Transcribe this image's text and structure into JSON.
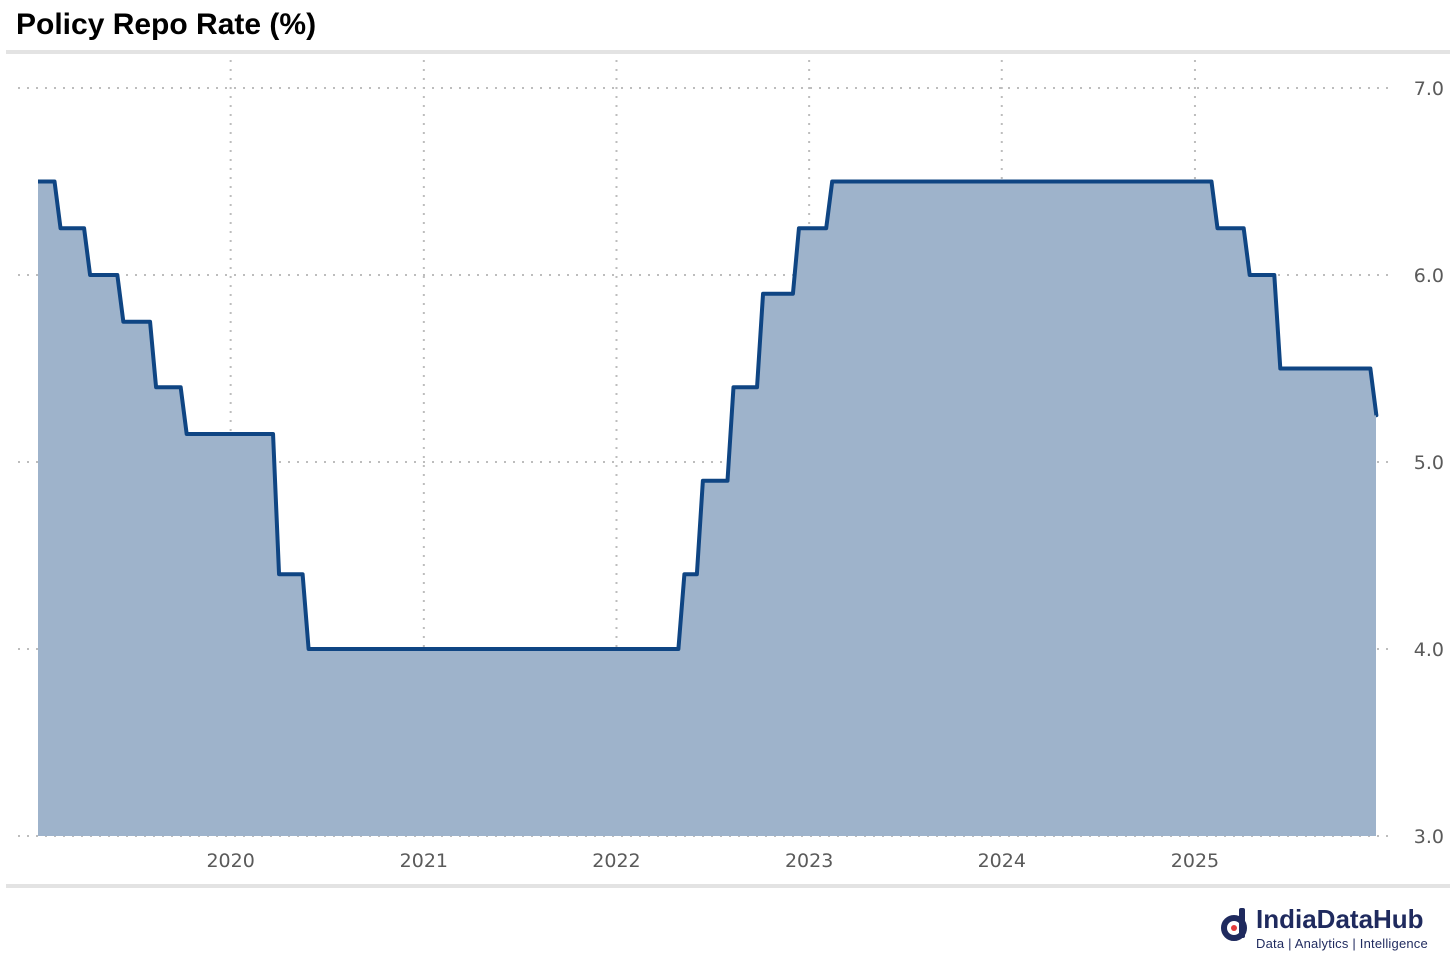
{
  "title": "Policy Repo Rate (%)",
  "brand": {
    "name": "IndiaDataHub",
    "tagline": "Data | Analytics | Intelligence"
  },
  "colors": {
    "line": "#0f4583",
    "fill": "#9eb3cb",
    "grid": "#bdbdbd",
    "rule": "#e3e3e3"
  },
  "chart_data": {
    "type": "area",
    "step": true,
    "title": "Policy Repo Rate (%)",
    "xlabel": "",
    "ylabel": "",
    "x_range": [
      "2019-01-01",
      "2025-12-10"
    ],
    "ylim": [
      3.0,
      7.0
    ],
    "y_ticks": [
      3.0,
      4.0,
      5.0,
      6.0,
      7.0
    ],
    "y_tick_labels": [
      "3.0",
      "4.0",
      "5.0",
      "6.0",
      "7.0"
    ],
    "x_ticks": [
      "2020-01-01",
      "2021-01-01",
      "2022-01-01",
      "2023-01-01",
      "2024-01-01",
      "2025-01-01"
    ],
    "x_tick_labels": [
      "2020",
      "2021",
      "2022",
      "2023",
      "2024",
      "2025"
    ],
    "y_axis_position": "right",
    "grid": true,
    "legend": "none",
    "series": [
      {
        "points": [
          {
            "date": "2019-01-01",
            "value": 6.5
          },
          {
            "date": "2019-02-07",
            "value": 6.25
          },
          {
            "date": "2019-04-04",
            "value": 6.0
          },
          {
            "date": "2019-06-06",
            "value": 5.75
          },
          {
            "date": "2019-08-07",
            "value": 5.4
          },
          {
            "date": "2019-10-04",
            "value": 5.15
          },
          {
            "date": "2020-03-27",
            "value": 4.4
          },
          {
            "date": "2020-05-22",
            "value": 4.0
          },
          {
            "date": "2022-05-04",
            "value": 4.4
          },
          {
            "date": "2022-06-08",
            "value": 4.9
          },
          {
            "date": "2022-08-05",
            "value": 5.4
          },
          {
            "date": "2022-09-30",
            "value": 5.9
          },
          {
            "date": "2022-12-07",
            "value": 6.25
          },
          {
            "date": "2023-02-08",
            "value": 6.5
          },
          {
            "date": "2025-02-07",
            "value": 6.25
          },
          {
            "date": "2025-04-09",
            "value": 6.0
          },
          {
            "date": "2025-06-06",
            "value": 5.5
          },
          {
            "date": "2025-12-05",
            "value": 5.25
          },
          {
            "date": "2025-12-10",
            "value": 5.25
          }
        ]
      }
    ]
  }
}
